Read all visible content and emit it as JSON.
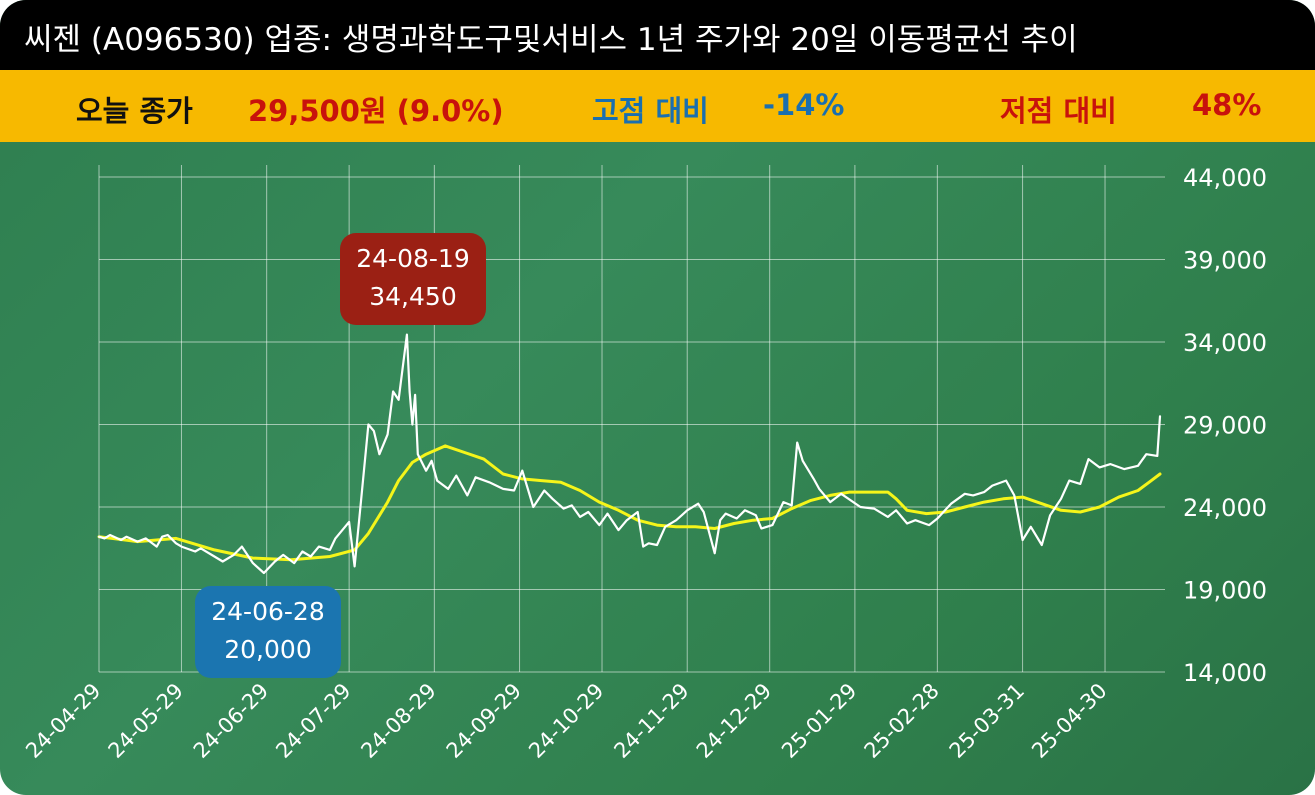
{
  "header": {
    "title": "씨젠 (A096530) 업종: 생명과학도구및서비스 1년 주가와 20일 이동평균선 추이"
  },
  "summary": {
    "close_label": "오늘 종가",
    "close_value": "29,500원 (9.0%)",
    "high_label": "고점 대비",
    "high_value": "-14%",
    "low_label": "저점 대비",
    "low_value": "48%"
  },
  "callouts": {
    "high_date": "24-08-19",
    "high_price": "34,450",
    "low_date": "24-06-28",
    "low_price": "20,000"
  },
  "colors": {
    "price_line": "#ffffff",
    "ma_line": "#f5f51a",
    "close_text": "#c8120c",
    "high_text": "#1a6fb0",
    "low_text": "#c8120c",
    "high_box": "#9b2014",
    "low_box": "#1b75b0"
  },
  "chart_data": {
    "type": "line",
    "x_ticks": [
      "24-04-29",
      "24-05-29",
      "24-06-29",
      "24-07-29",
      "24-08-29",
      "24-09-29",
      "24-10-29",
      "24-11-29",
      "24-12-29",
      "25-01-29",
      "25-02-28",
      "25-03-31",
      "25-04-30"
    ],
    "y_ticks": [
      "44,000",
      "39,000",
      "34,000",
      "29,000",
      "24,000",
      "19,000",
      "14,000"
    ],
    "ylim": [
      14000,
      44000
    ],
    "grid": true,
    "series": [
      {
        "values": [
          [
            "2024-04-29",
            22200
          ],
          [
            "2024-05-01",
            22100
          ],
          [
            "2024-05-03",
            22300
          ],
          [
            "2024-05-07",
            22000
          ],
          [
            "2024-05-09",
            22200
          ],
          [
            "2024-05-13",
            21900
          ],
          [
            "2024-05-16",
            22100
          ],
          [
            "2024-05-20",
            21600
          ],
          [
            "2024-05-22",
            22200
          ],
          [
            "2024-05-24",
            22300
          ],
          [
            "2024-05-27",
            21800
          ],
          [
            "2024-05-29",
            21600
          ],
          [
            "2024-06-03",
            21300
          ],
          [
            "2024-06-05",
            21500
          ],
          [
            "2024-06-10",
            21000
          ],
          [
            "2024-06-13",
            20700
          ],
          [
            "2024-06-17",
            21100
          ],
          [
            "2024-06-20",
            21600
          ],
          [
            "2024-06-24",
            20600
          ],
          [
            "2024-06-28",
            20000
          ],
          [
            "2024-07-02",
            20700
          ],
          [
            "2024-07-05",
            21100
          ],
          [
            "2024-07-09",
            20600
          ],
          [
            "2024-07-12",
            21300
          ],
          [
            "2024-07-15",
            21000
          ],
          [
            "2024-07-18",
            21600
          ],
          [
            "2024-07-22",
            21400
          ],
          [
            "2024-07-24",
            22100
          ],
          [
            "2024-07-26",
            22500
          ],
          [
            "2024-07-29",
            23100
          ],
          [
            "2024-07-31",
            20400
          ],
          [
            "2024-08-02",
            23800
          ],
          [
            "2024-08-05",
            29000
          ],
          [
            "2024-08-07",
            28600
          ],
          [
            "2024-08-09",
            27200
          ],
          [
            "2024-08-12",
            28400
          ],
          [
            "2024-08-14",
            31000
          ],
          [
            "2024-08-16",
            30500
          ],
          [
            "2024-08-19",
            34450
          ],
          [
            "2024-08-20",
            31000
          ],
          [
            "2024-08-21",
            29000
          ],
          [
            "2024-08-22",
            30800
          ],
          [
            "2024-08-23",
            27200
          ],
          [
            "2024-08-26",
            26200
          ],
          [
            "2024-08-28",
            26800
          ],
          [
            "2024-08-30",
            25600
          ],
          [
            "2024-09-03",
            25100
          ],
          [
            "2024-09-06",
            25900
          ],
          [
            "2024-09-10",
            24700
          ],
          [
            "2024-09-13",
            25800
          ],
          [
            "2024-09-18",
            25500
          ],
          [
            "2024-09-23",
            25100
          ],
          [
            "2024-09-27",
            25000
          ],
          [
            "2024-09-30",
            26200
          ],
          [
            "2024-10-04",
            24000
          ],
          [
            "2024-10-08",
            25000
          ],
          [
            "2024-10-11",
            24500
          ],
          [
            "2024-10-15",
            23900
          ],
          [
            "2024-10-18",
            24100
          ],
          [
            "2024-10-21",
            23400
          ],
          [
            "2024-10-24",
            23700
          ],
          [
            "2024-10-28",
            22900
          ],
          [
            "2024-10-31",
            23600
          ],
          [
            "2024-11-04",
            22600
          ],
          [
            "2024-11-07",
            23200
          ],
          [
            "2024-11-11",
            23700
          ],
          [
            "2024-11-13",
            21600
          ],
          [
            "2024-11-15",
            21800
          ],
          [
            "2024-11-18",
            21700
          ],
          [
            "2024-11-21",
            22800
          ],
          [
            "2024-11-25",
            23200
          ],
          [
            "2024-11-27",
            23500
          ],
          [
            "2024-11-29",
            23800
          ],
          [
            "2024-12-03",
            24200
          ],
          [
            "2024-12-05",
            23700
          ],
          [
            "2024-12-09",
            21200
          ],
          [
            "2024-12-11",
            23200
          ],
          [
            "2024-12-13",
            23600
          ],
          [
            "2024-12-17",
            23300
          ],
          [
            "2024-12-20",
            23800
          ],
          [
            "2024-12-24",
            23500
          ],
          [
            "2024-12-26",
            22700
          ],
          [
            "2024-12-30",
            22900
          ],
          [
            "2025-01-03",
            24300
          ],
          [
            "2025-01-06",
            24100
          ],
          [
            "2025-01-08",
            27900
          ],
          [
            "2025-01-10",
            26800
          ],
          [
            "2025-01-14",
            25700
          ],
          [
            "2025-01-16",
            25100
          ],
          [
            "2025-01-20",
            24300
          ],
          [
            "2025-01-24",
            24800
          ],
          [
            "2025-01-31",
            24000
          ],
          [
            "2025-02-05",
            23900
          ],
          [
            "2025-02-10",
            23400
          ],
          [
            "2025-02-13",
            23800
          ],
          [
            "2025-02-17",
            23000
          ],
          [
            "2025-02-20",
            23200
          ],
          [
            "2025-02-25",
            22900
          ],
          [
            "2025-02-28",
            23300
          ],
          [
            "2025-03-05",
            24200
          ],
          [
            "2025-03-10",
            24800
          ],
          [
            "2025-03-13",
            24700
          ],
          [
            "2025-03-17",
            24900
          ],
          [
            "2025-03-20",
            25300
          ],
          [
            "2025-03-25",
            25600
          ],
          [
            "2025-03-28",
            24700
          ],
          [
            "2025-03-31",
            22000
          ],
          [
            "2025-04-03",
            22800
          ],
          [
            "2025-04-07",
            21700
          ],
          [
            "2025-04-10",
            23500
          ],
          [
            "2025-04-14",
            24500
          ],
          [
            "2025-04-17",
            25600
          ],
          [
            "2025-04-21",
            25400
          ],
          [
            "2025-04-24",
            26900
          ],
          [
            "2025-04-28",
            26400
          ],
          [
            "2025-05-02",
            26600
          ],
          [
            "2025-05-07",
            26300
          ],
          [
            "2025-05-12",
            26500
          ],
          [
            "2025-05-15",
            27200
          ],
          [
            "2025-05-19",
            27100
          ],
          [
            "2025-05-20",
            29500
          ]
        ]
      },
      {
        "values": [
          [
            "2024-04-29",
            22200
          ],
          [
            "2024-05-13",
            21900
          ],
          [
            "2024-05-27",
            22100
          ],
          [
            "2024-06-10",
            21400
          ],
          [
            "2024-06-24",
            20900
          ],
          [
            "2024-07-08",
            20800
          ],
          [
            "2024-07-22",
            21000
          ],
          [
            "2024-07-31",
            21400
          ],
          [
            "2024-08-05",
            22400
          ],
          [
            "2024-08-12",
            24300
          ],
          [
            "2024-08-16",
            25600
          ],
          [
            "2024-08-21",
            26700
          ],
          [
            "2024-08-26",
            27200
          ],
          [
            "2024-09-02",
            27700
          ],
          [
            "2024-09-09",
            27300
          ],
          [
            "2024-09-16",
            26900
          ],
          [
            "2024-09-23",
            26000
          ],
          [
            "2024-09-30",
            25700
          ],
          [
            "2024-10-07",
            25600
          ],
          [
            "2024-10-14",
            25500
          ],
          [
            "2024-10-21",
            25000
          ],
          [
            "2024-10-28",
            24300
          ],
          [
            "2024-11-04",
            23800
          ],
          [
            "2024-11-11",
            23200
          ],
          [
            "2024-11-18",
            22900
          ],
          [
            "2024-11-25",
            22800
          ],
          [
            "2024-12-02",
            22800
          ],
          [
            "2024-12-09",
            22700
          ],
          [
            "2024-12-16",
            23000
          ],
          [
            "2024-12-23",
            23200
          ],
          [
            "2024-12-30",
            23300
          ],
          [
            "2025-01-06",
            23900
          ],
          [
            "2025-01-13",
            24400
          ],
          [
            "2025-01-20",
            24700
          ],
          [
            "2025-01-27",
            24900
          ],
          [
            "2025-02-03",
            24900
          ],
          [
            "2025-02-10",
            24900
          ],
          [
            "2025-02-13",
            24500
          ],
          [
            "2025-02-17",
            23800
          ],
          [
            "2025-02-24",
            23600
          ],
          [
            "2025-03-03",
            23700
          ],
          [
            "2025-03-10",
            24000
          ],
          [
            "2025-03-17",
            24300
          ],
          [
            "2025-03-24",
            24500
          ],
          [
            "2025-03-31",
            24600
          ],
          [
            "2025-04-07",
            24200
          ],
          [
            "2025-04-14",
            23800
          ],
          [
            "2025-04-21",
            23700
          ],
          [
            "2025-04-28",
            24000
          ],
          [
            "2025-05-05",
            24600
          ],
          [
            "2025-05-12",
            25000
          ],
          [
            "2025-05-16",
            25500
          ],
          [
            "2025-05-20",
            26000
          ]
        ]
      }
    ]
  }
}
